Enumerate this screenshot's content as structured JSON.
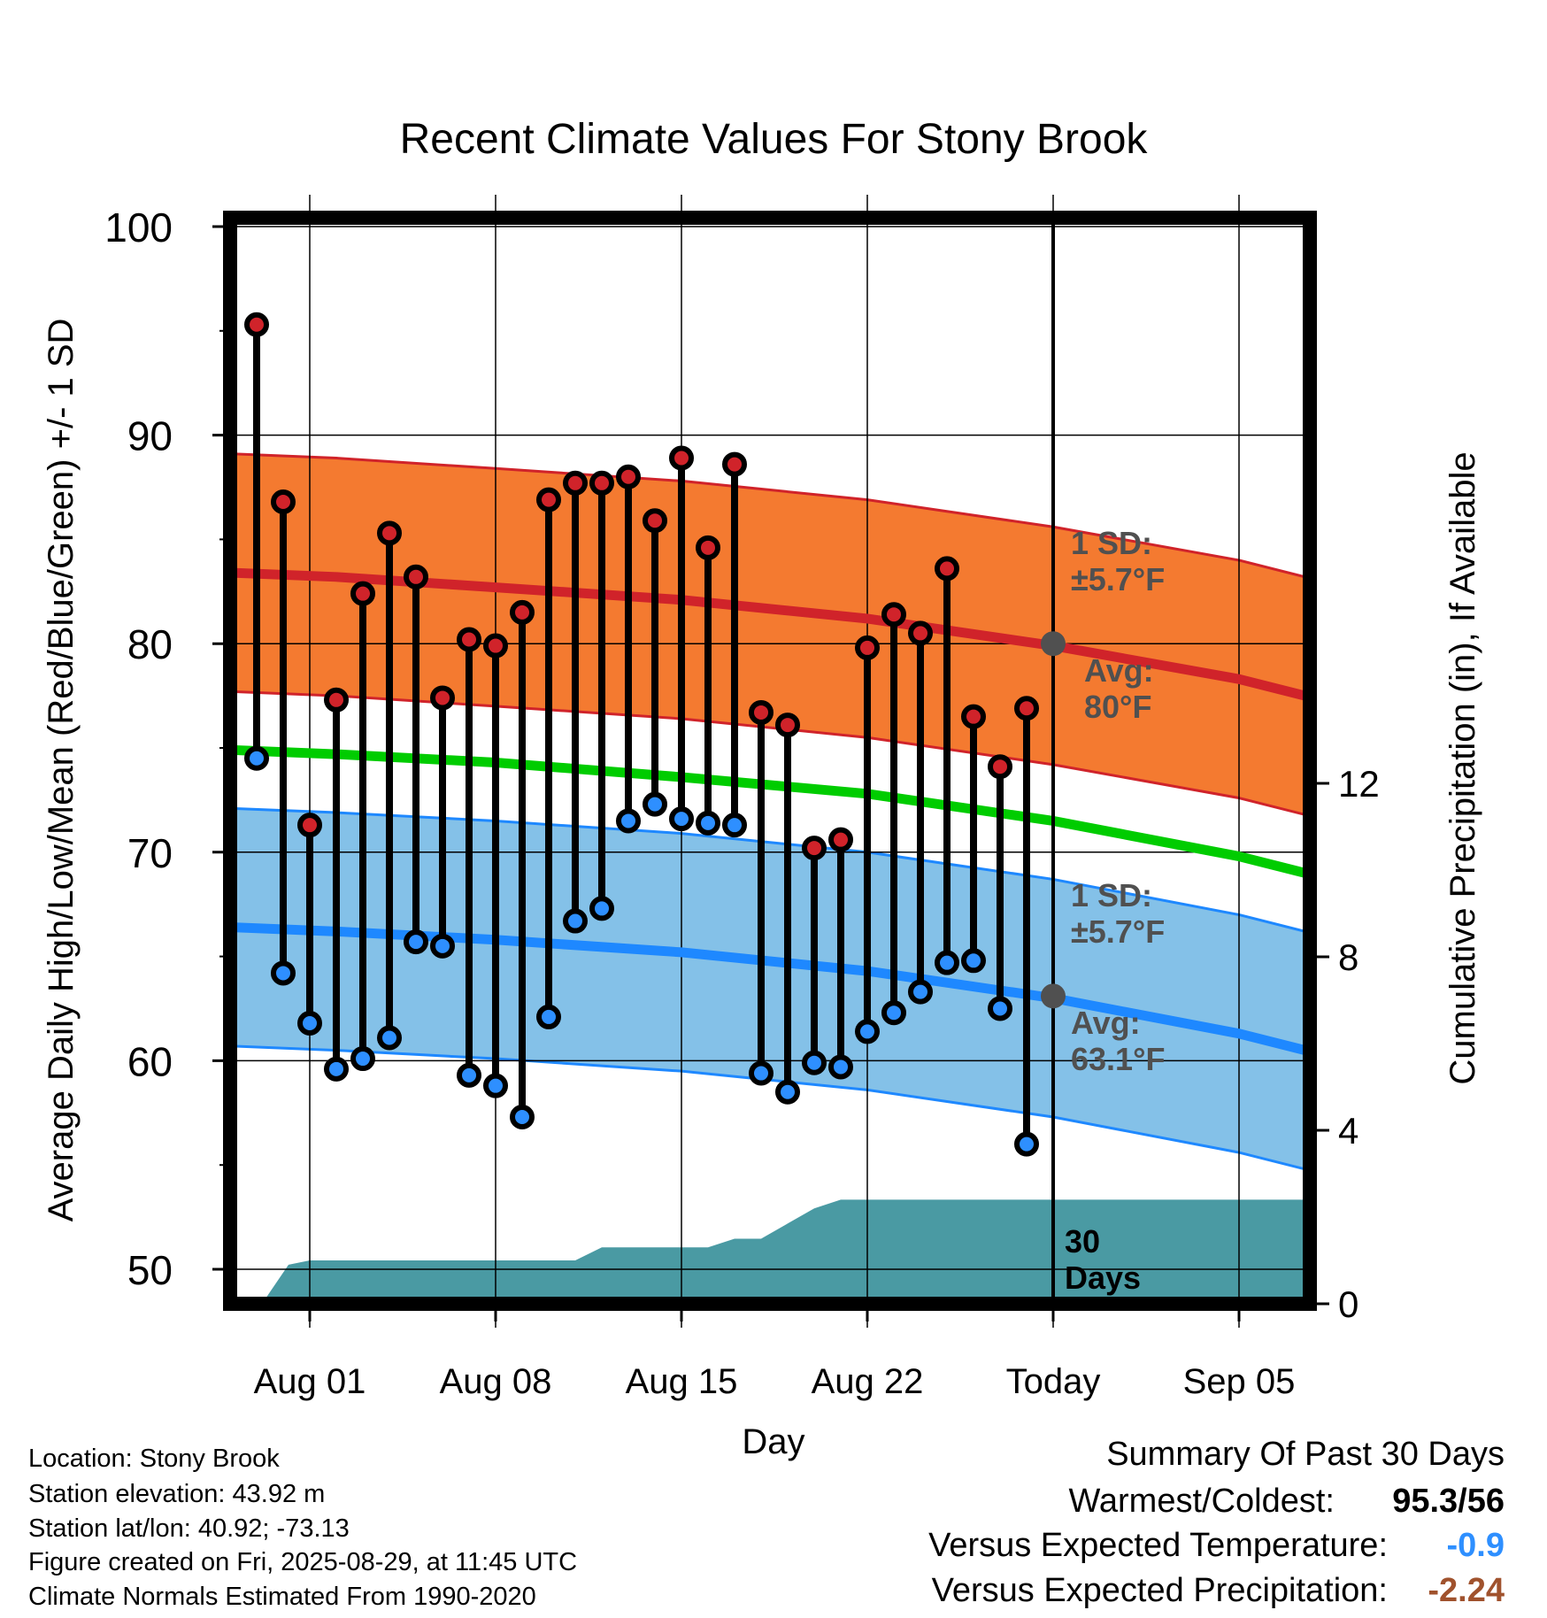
{
  "chart_data": {
    "type": "line",
    "title": "Recent Climate Values For Stony Brook",
    "xlabel": "Day",
    "ylabel": "Average Daily High/Low/Mean (Red/Blue/Green) +/- 1 SD",
    "y2label": "Cumulative Precipitation (in), If Available",
    "ylim": [
      48,
      100
    ],
    "y_ticks": [
      "50",
      "60",
      "70",
      "80",
      "90",
      "100"
    ],
    "y2lim": [
      0,
      18
    ],
    "y2_ticks": [
      "0",
      "4",
      "8",
      "12"
    ],
    "x_tick_labels": [
      "Aug 01",
      "Aug 08",
      "Aug 15",
      "Aug 22",
      "Today",
      "Sep 05"
    ],
    "x_tick_days": [
      1,
      8,
      15,
      22,
      29,
      36
    ],
    "xlim": [
      -1.9,
      38.8
    ],
    "grid": true,
    "days": [
      -1,
      0,
      1,
      2,
      3,
      4,
      5,
      6,
      7,
      8,
      9,
      10,
      11,
      12,
      13,
      14,
      15,
      16,
      17,
      18,
      19,
      20,
      21,
      22,
      23,
      24,
      25,
      26,
      27,
      28
    ],
    "series": [
      {
        "name": "Daily High",
        "color": "#d0232a",
        "values": [
          95.3,
          86.8,
          71.3,
          77.3,
          82.4,
          85.3,
          83.2,
          77.4,
          80.2,
          79.9,
          81.5,
          86.9,
          87.7,
          87.7,
          88.0,
          85.9,
          88.9,
          84.6,
          88.6,
          76.7,
          76.1,
          70.2,
          70.6,
          79.8,
          81.4,
          80.5,
          83.6,
          76.5,
          74.1,
          76.9
        ]
      },
      {
        "name": "Daily Low",
        "color": "#2e8fff",
        "values": [
          74.5,
          64.2,
          61.8,
          59.6,
          60.1,
          61.1,
          65.7,
          65.5,
          59.3,
          58.8,
          57.3,
          62.1,
          66.7,
          67.3,
          71.5,
          72.3,
          71.6,
          71.4,
          71.3,
          59.4,
          58.5,
          59.9,
          59.7,
          61.4,
          62.3,
          63.3,
          64.7,
          64.8,
          62.5,
          56.0
        ]
      }
    ],
    "normals": {
      "days": [
        -1.9,
        2,
        8,
        15,
        22,
        29,
        36,
        38.8
      ],
      "high_avg": [
        83.4,
        83.2,
        82.7,
        82.1,
        81.2,
        79.9,
        78.3,
        77.4
      ],
      "low_avg": [
        66.4,
        66.2,
        65.8,
        65.2,
        64.3,
        63.0,
        61.3,
        60.4
      ],
      "mean": [
        74.9,
        74.7,
        74.3,
        73.6,
        72.8,
        71.5,
        69.8,
        68.9
      ],
      "sd": 5.7
    },
    "precip_cum": {
      "days": [
        -0.8,
        0.2,
        1,
        11,
        12,
        16,
        17,
        18,
        20,
        21,
        29,
        38.8
      ],
      "values": [
        0,
        0.9,
        1.0,
        1.0,
        1.3,
        1.3,
        1.5,
        1.5,
        2.2,
        2.4,
        2.4,
        2.4
      ]
    },
    "annotations": {
      "high_sd": "1 SD:\n±5.7°F",
      "high_avg": "Avg:\n80°F",
      "low_sd": "1 SD:\n±5.7°F",
      "low_avg": "Avg:\n63.1°F",
      "window": "30\nDays"
    },
    "today_day": 29,
    "today_high_avg": 80,
    "today_low_avg": 63.1,
    "colors": {
      "high_band": "#f47a30",
      "high_band_edge": "#d0232a",
      "high_line": "#d0232a",
      "low_band": "#84c1e8",
      "low_band_edge": "#1e88ff",
      "low_line": "#1e88ff",
      "mean_line": "#00cc00",
      "precip_fill": "#4a9aa3",
      "annot_text": "#505050",
      "today_marker": "#505050"
    }
  },
  "info": {
    "location": "Location: Stony Brook",
    "elevation": "Station elevation: 43.92 m",
    "latlon": "Station lat/lon: 40.92; -73.13",
    "created": "Figure created on Fri, 2025-08-29, at 11:45 UTC",
    "normals": "Climate Normals Estimated From 1990-2020"
  },
  "summary": {
    "title": "Summary Of Past 30 Days",
    "warmest_label": "Warmest/Coldest:",
    "warmest_value": "95.3/56",
    "temp_label": "Versus Expected Temperature:",
    "temp_value": "-0.9",
    "temp_color": "#2e8fff",
    "precip_label": "Versus Expected Precipitation:",
    "precip_value": "-2.24",
    "precip_color": "#a0522d"
  }
}
